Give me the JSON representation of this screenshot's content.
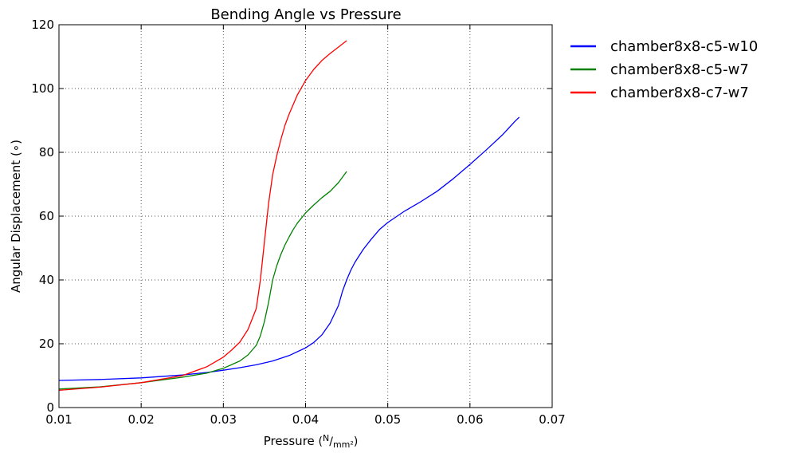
{
  "chart_data": {
    "type": "line",
    "title": "Bending Angle vs Pressure",
    "xlabel_main": "Pressure",
    "xlabel_unit_num": "N",
    "xlabel_unit_den": "mm²",
    "ylabel": "Angular Displacement (∘)",
    "xlim": [
      0.01,
      0.07
    ],
    "ylim": [
      0,
      120
    ],
    "xticks": [
      0.01,
      0.02,
      0.03,
      0.04,
      0.05,
      0.06,
      0.07
    ],
    "xtick_labels": [
      "0.01",
      "0.02",
      "0.03",
      "0.04",
      "0.05",
      "0.06",
      "0.07"
    ],
    "yticks": [
      0,
      20,
      40,
      60,
      80,
      100,
      120
    ],
    "ytick_labels": [
      "0",
      "20",
      "40",
      "60",
      "80",
      "100",
      "120"
    ],
    "grid": true,
    "legend_position": "outside-right",
    "series": [
      {
        "name": "chamber8x8-c5-w10",
        "color": "#0000ff",
        "points": [
          [
            0.01,
            8.5
          ],
          [
            0.015,
            8.8
          ],
          [
            0.02,
            9.3
          ],
          [
            0.025,
            10.2
          ],
          [
            0.028,
            11.0
          ],
          [
            0.03,
            11.7
          ],
          [
            0.032,
            12.5
          ],
          [
            0.034,
            13.4
          ],
          [
            0.036,
            14.6
          ],
          [
            0.038,
            16.3
          ],
          [
            0.04,
            18.7
          ],
          [
            0.041,
            20.4
          ],
          [
            0.042,
            22.8
          ],
          [
            0.043,
            26.5
          ],
          [
            0.044,
            32.0
          ],
          [
            0.0445,
            36.5
          ],
          [
            0.045,
            40.0
          ],
          [
            0.0455,
            43.0
          ],
          [
            0.046,
            45.5
          ],
          [
            0.047,
            49.5
          ],
          [
            0.048,
            52.8
          ],
          [
            0.049,
            55.8
          ],
          [
            0.05,
            58.0
          ],
          [
            0.052,
            61.5
          ],
          [
            0.054,
            64.5
          ],
          [
            0.056,
            67.8
          ],
          [
            0.058,
            71.8
          ],
          [
            0.06,
            76.2
          ],
          [
            0.062,
            80.8
          ],
          [
            0.064,
            85.6
          ],
          [
            0.0655,
            89.8
          ],
          [
            0.066,
            91.0
          ]
        ]
      },
      {
        "name": "chamber8x8-c5-w7",
        "color": "#008000",
        "points": [
          [
            0.01,
            5.8
          ],
          [
            0.015,
            6.5
          ],
          [
            0.02,
            7.8
          ],
          [
            0.025,
            9.5
          ],
          [
            0.028,
            10.8
          ],
          [
            0.03,
            12.3
          ],
          [
            0.032,
            14.6
          ],
          [
            0.033,
            16.5
          ],
          [
            0.034,
            19.5
          ],
          [
            0.0345,
            22.5
          ],
          [
            0.035,
            27.0
          ],
          [
            0.0355,
            33.0
          ],
          [
            0.036,
            40.0
          ],
          [
            0.0365,
            44.5
          ],
          [
            0.037,
            48.0
          ],
          [
            0.0375,
            51.0
          ],
          [
            0.038,
            53.5
          ],
          [
            0.0385,
            55.8
          ],
          [
            0.039,
            57.8
          ],
          [
            0.04,
            61.0
          ],
          [
            0.041,
            63.5
          ],
          [
            0.042,
            65.8
          ],
          [
            0.043,
            67.8
          ],
          [
            0.044,
            70.5
          ],
          [
            0.045,
            74.0
          ]
        ]
      },
      {
        "name": "chamber8x8-c7-w7",
        "color": "#ff0000",
        "points": [
          [
            0.01,
            5.4
          ],
          [
            0.015,
            6.4
          ],
          [
            0.02,
            7.8
          ],
          [
            0.025,
            10.0
          ],
          [
            0.028,
            12.8
          ],
          [
            0.03,
            15.8
          ],
          [
            0.031,
            18.0
          ],
          [
            0.032,
            20.5
          ],
          [
            0.033,
            24.5
          ],
          [
            0.034,
            31.0
          ],
          [
            0.0345,
            40.0
          ],
          [
            0.035,
            52.0
          ],
          [
            0.0355,
            64.0
          ],
          [
            0.036,
            73.0
          ],
          [
            0.0365,
            79.0
          ],
          [
            0.037,
            84.0
          ],
          [
            0.0375,
            88.5
          ],
          [
            0.038,
            92.0
          ],
          [
            0.039,
            98.0
          ],
          [
            0.04,
            102.5
          ],
          [
            0.041,
            106.0
          ],
          [
            0.042,
            108.8
          ],
          [
            0.043,
            111.0
          ],
          [
            0.044,
            113.0
          ],
          [
            0.045,
            115.0
          ]
        ]
      }
    ]
  }
}
